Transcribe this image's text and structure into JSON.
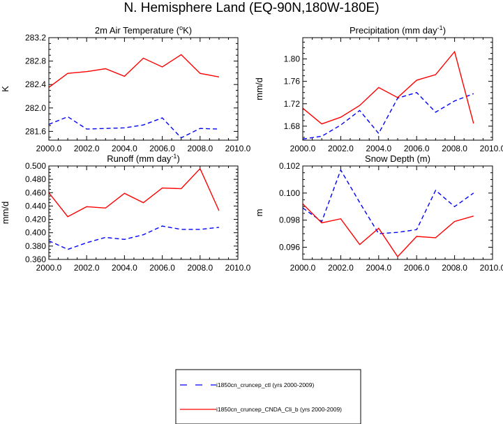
{
  "page": {
    "title": "N. Hemisphere Land (EQ-90N,180W-180E)"
  },
  "series_styles": {
    "ctl_color": "#0000ff",
    "cnda_color": "#ff0000"
  },
  "legend": {
    "entries": [
      {
        "label": "i1850cn_cruncep_ctl (yrs 2000-2009)",
        "style": "dashed",
        "color": "#0000ff"
      },
      {
        "label": "i1850cn_cruncep_CNDA_Cli_b (yrs 2000-2009)",
        "style": "solid",
        "color": "#ff0000"
      }
    ]
  },
  "chart_data": [
    {
      "type": "line",
      "title": "2m Air Temperature (",
      "title_sup": "o",
      "title_after": "K)",
      "ylabel": "K",
      "xlim": [
        2000,
        2010
      ],
      "ylim": [
        281.45,
        283.2
      ],
      "xticks": [
        "2000.0",
        "2002.0",
        "2004.0",
        "2006.0",
        "2008.0",
        "2010.0"
      ],
      "yticks": [
        {
          "value": 281.6,
          "label": "281.6"
        },
        {
          "value": 282.0,
          "label": "282.0"
        },
        {
          "value": 282.4,
          "label": "282.4"
        },
        {
          "value": 282.8,
          "label": "282.8"
        },
        {
          "value": 283.2,
          "label": "283.2"
        }
      ],
      "x": [
        2000,
        2001,
        2002,
        2003,
        2004,
        2005,
        2006,
        2007,
        2008,
        2009
      ],
      "series": [
        {
          "values": [
            281.72,
            281.85,
            281.64,
            281.65,
            281.66,
            281.71,
            281.83,
            281.49,
            281.65,
            281.64
          ],
          "style": "dashed"
        },
        {
          "values": [
            282.35,
            282.59,
            282.62,
            282.67,
            282.54,
            282.85,
            282.7,
            282.91,
            282.59,
            282.53
          ],
          "style": "solid"
        }
      ]
    },
    {
      "type": "line",
      "title": "Precipitation (mm day",
      "title_sup": "-1",
      "title_after": ")",
      "ylabel": "mm/d",
      "xlim": [
        2000,
        2010
      ],
      "ylim": [
        1.655,
        1.838
      ],
      "xticks": [
        "2000.0",
        "2002.0",
        "2004.0",
        "2006.0",
        "2008.0",
        "2010.0"
      ],
      "yticks": [
        {
          "value": 1.68,
          "label": "1.68"
        },
        {
          "value": 1.72,
          "label": "1.72"
        },
        {
          "value": 1.76,
          "label": "1.76"
        },
        {
          "value": 1.8,
          "label": "1.80"
        }
      ],
      "x": [
        2000,
        2001,
        2002,
        2003,
        2004,
        2005,
        2006,
        2007,
        2008,
        2009
      ],
      "series": [
        {
          "values": [
            1.657,
            1.662,
            1.682,
            1.708,
            1.667,
            1.73,
            1.74,
            1.705,
            1.725,
            1.738
          ],
          "style": "dashed"
        },
        {
          "values": [
            1.712,
            1.684,
            1.696,
            1.717,
            1.749,
            1.731,
            1.762,
            1.772,
            1.813,
            1.685
          ],
          "style": "solid"
        }
      ]
    },
    {
      "type": "line",
      "title": "Runoff (mm day",
      "title_sup": "-1",
      "title_after": ")",
      "ylabel": "mm/d",
      "xlim": [
        2000,
        2010
      ],
      "ylim": [
        0.36,
        0.5
      ],
      "xticks": [
        "2000.0",
        "2002.0",
        "2004.0",
        "2006.0",
        "2008.0",
        "2010.0"
      ],
      "yticks": [
        {
          "value": 0.36,
          "label": "0.360"
        },
        {
          "value": 0.38,
          "label": "0.380"
        },
        {
          "value": 0.4,
          "label": "0.400"
        },
        {
          "value": 0.42,
          "label": "0.420"
        },
        {
          "value": 0.44,
          "label": "0.440"
        },
        {
          "value": 0.46,
          "label": "0.460"
        },
        {
          "value": 0.48,
          "label": "0.480"
        },
        {
          "value": 0.5,
          "label": "0.500"
        }
      ],
      "x": [
        2000,
        2001,
        2002,
        2003,
        2004,
        2005,
        2006,
        2007,
        2008,
        2009
      ],
      "series": [
        {
          "values": [
            0.388,
            0.375,
            0.385,
            0.393,
            0.39,
            0.397,
            0.41,
            0.405,
            0.405,
            0.408
          ],
          "style": "dashed"
        },
        {
          "values": [
            0.46,
            0.424,
            0.439,
            0.437,
            0.459,
            0.445,
            0.467,
            0.466,
            0.496,
            0.433
          ],
          "style": "solid"
        }
      ]
    },
    {
      "type": "line",
      "title": "Snow Depth (m)",
      "title_sup": "",
      "title_after": "",
      "ylabel": "m",
      "xlim": [
        2000,
        2010
      ],
      "ylim": [
        0.0951,
        0.102
      ],
      "xticks": [
        "2000.0",
        "2002.0",
        "2004.0",
        "2006.0",
        "2008.0",
        "2010.0"
      ],
      "yticks": [
        {
          "value": 0.096,
          "label": "0.096"
        },
        {
          "value": 0.098,
          "label": "0.098"
        },
        {
          "value": 0.1,
          "label": "0.100"
        },
        {
          "value": 0.102,
          "label": "0.102"
        }
      ],
      "x": [
        2000,
        2001,
        2002,
        2003,
        2004,
        2005,
        2006,
        2007,
        2008,
        2009
      ],
      "series": [
        {
          "values": [
            0.0989,
            0.0979,
            0.1017,
            0.0993,
            0.097,
            0.0971,
            0.0973,
            0.1002,
            0.099,
            0.1
          ],
          "style": "dashed"
        },
        {
          "values": [
            0.0992,
            0.0978,
            0.0981,
            0.0962,
            0.0974,
            0.0953,
            0.0968,
            0.0967,
            0.0979,
            0.0983
          ],
          "style": "solid"
        }
      ]
    }
  ]
}
